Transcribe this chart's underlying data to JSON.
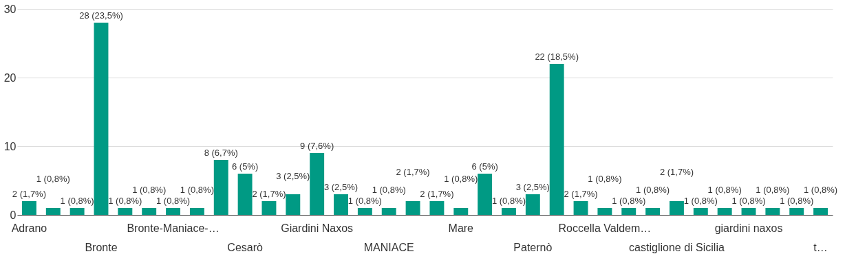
{
  "chart_data": {
    "type": "bar",
    "categories": [
      "Adrano",
      null,
      null,
      "Bronte",
      null,
      null,
      "Bronte-Maniace-…",
      null,
      null,
      "Cesarò",
      null,
      null,
      "Giardini Naxos",
      null,
      null,
      "MANIACE",
      null,
      null,
      "Mare",
      null,
      null,
      "Paternò",
      null,
      null,
      "Roccella Valdem…",
      null,
      null,
      "castiglione di Sicilia",
      null,
      null,
      "giardini naxos",
      null,
      null,
      "t…"
    ],
    "values": [
      2,
      1,
      1,
      28,
      1,
      1,
      1,
      1,
      8,
      6,
      2,
      3,
      9,
      3,
      1,
      1,
      2,
      2,
      1,
      6,
      1,
      3,
      22,
      2,
      1,
      1,
      1,
      2,
      1,
      1,
      1,
      1,
      1,
      1
    ],
    "value_labels": [
      "2 (1,7%)",
      "1 (0,8%)",
      "1 (0,8%)",
      "28 (23,5%)",
      "1 (0,8%)",
      "1 (0,8%)",
      "1 (0,8%)",
      "1 (0,8%)",
      "8 (6,7%)",
      "6 (5%)",
      "2 (1,7%)",
      "3 (2,5%)",
      "9 (7,6%)",
      "3 (2,5%)",
      "1 (0,8%)",
      "1 (0,8%)",
      "2 (1,7%)",
      "2 (1,7%)",
      "1 (0,8%)",
      "6 (5%)",
      "1 (0,8%)",
      "3 (2,5%)",
      "22 (18,5%)",
      "2 (1,7%)",
      "1 (0,8%)",
      "1 (0,8%)",
      "1 (0,8%)",
      "2 (1,7%)",
      "1 (0,8%)",
      "1 (0,8%)",
      "1 (0,8%)",
      "1 (0,8%)",
      "1 (0,8%)",
      "1 (0,8%)"
    ],
    "color": "#009a84",
    "ylim": [
      0,
      30
    ],
    "yticks": [
      0,
      10,
      20,
      30
    ],
    "grid": "y"
  }
}
